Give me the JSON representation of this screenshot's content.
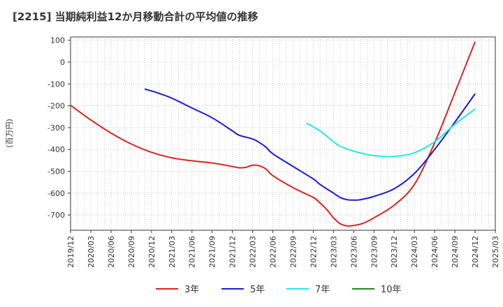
{
  "chart_data": {
    "type": "line",
    "title": "[2215]  当期純利益12か月移動合計の平均値の推移",
    "ylabel": "(百万円)",
    "xlabel": "",
    "ylim": [
      -770,
      115
    ],
    "y_ticks": [
      100,
      0,
      -100,
      -200,
      -300,
      -400,
      -500,
      -600,
      -700
    ],
    "x_ticks": [
      "2019/12",
      "2020/03",
      "2020/06",
      "2020/09",
      "2020/12",
      "2021/03",
      "2021/06",
      "2021/09",
      "2021/12",
      "2022/03",
      "2022/06",
      "2022/09",
      "2022/12",
      "2023/03",
      "2023/06",
      "2023/09",
      "2023/12",
      "2024/03",
      "2024/06",
      "2024/09",
      "2024/12",
      "2025/03"
    ],
    "x_range": [
      "2019/12",
      "2025/03"
    ],
    "grid": true,
    "legend_position": "bottom",
    "series": [
      {
        "name": "3年",
        "color": "#dd2222",
        "points": [
          [
            "2019/12",
            -198
          ],
          [
            "2020/03",
            -265
          ],
          [
            "2020/06",
            -325
          ],
          [
            "2020/09",
            -375
          ],
          [
            "2020/12",
            -413
          ],
          [
            "2021/03",
            -438
          ],
          [
            "2021/06",
            -452
          ],
          [
            "2021/09",
            -462
          ],
          [
            "2021/12",
            -478
          ],
          [
            "2022/01",
            -484
          ],
          [
            "2022/02",
            -482
          ],
          [
            "2022/03",
            -472
          ],
          [
            "2022/04",
            -475
          ],
          [
            "2022/05",
            -490
          ],
          [
            "2022/06",
            -520
          ],
          [
            "2022/09",
            -575
          ],
          [
            "2022/12",
            -620
          ],
          [
            "2023/01",
            -645
          ],
          [
            "2023/02",
            -675
          ],
          [
            "2023/03",
            -713
          ],
          [
            "2023/04",
            -740
          ],
          [
            "2023/05",
            -750
          ],
          [
            "2023/06",
            -748
          ],
          [
            "2023/07",
            -742
          ],
          [
            "2023/08",
            -730
          ],
          [
            "2023/09",
            -713
          ],
          [
            "2023/12",
            -655
          ],
          [
            "2024/03",
            -560
          ],
          [
            "2024/06",
            -370
          ],
          [
            "2024/09",
            -140
          ],
          [
            "2024/12",
            93
          ]
        ]
      },
      {
        "name": "5年",
        "color": "#1a1ad6",
        "points": [
          [
            "2020/11",
            -123
          ],
          [
            "2021/01",
            -142
          ],
          [
            "2021/03",
            -165
          ],
          [
            "2021/06",
            -210
          ],
          [
            "2021/09",
            -255
          ],
          [
            "2021/12",
            -315
          ],
          [
            "2022/01",
            -335
          ],
          [
            "2022/03",
            -352
          ],
          [
            "2022/04",
            -368
          ],
          [
            "2022/05",
            -390
          ],
          [
            "2022/06",
            -420
          ],
          [
            "2022/09",
            -478
          ],
          [
            "2022/12",
            -535
          ],
          [
            "2023/01",
            -560
          ],
          [
            "2023/03",
            -600
          ],
          [
            "2023/04",
            -620
          ],
          [
            "2023/05",
            -630
          ],
          [
            "2023/06",
            -632
          ],
          [
            "2023/07",
            -630
          ],
          [
            "2023/09",
            -615
          ],
          [
            "2023/12",
            -580
          ],
          [
            "2024/03",
            -510
          ],
          [
            "2024/06",
            -400
          ],
          [
            "2024/09",
            -275
          ],
          [
            "2024/12",
            -145
          ]
        ]
      },
      {
        "name": "7年",
        "color": "#22e6e6",
        "points": [
          [
            "2022/11",
            -280
          ],
          [
            "2023/01",
            -315
          ],
          [
            "2023/03",
            -365
          ],
          [
            "2023/04",
            -385
          ],
          [
            "2023/06",
            -408
          ],
          [
            "2023/09",
            -428
          ],
          [
            "2023/12",
            -432
          ],
          [
            "2024/03",
            -415
          ],
          [
            "2024/06",
            -365
          ],
          [
            "2024/09",
            -285
          ],
          [
            "2024/12",
            -215
          ]
        ]
      },
      {
        "name": "10年",
        "color": "#228822",
        "points": []
      }
    ]
  }
}
